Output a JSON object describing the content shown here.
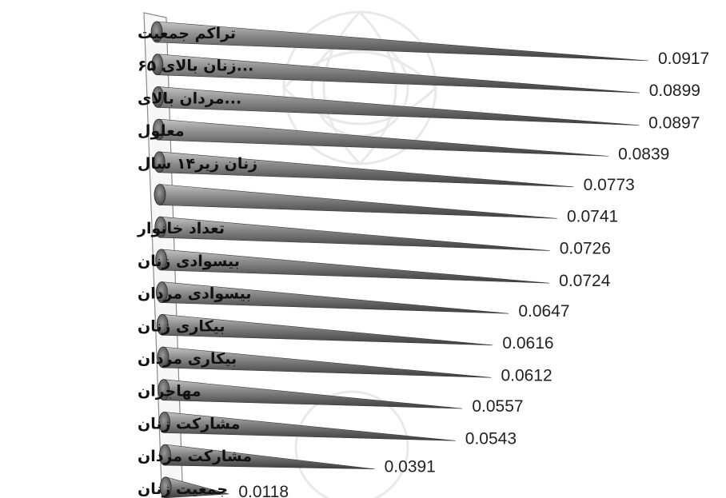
{
  "chart_data": {
    "type": "bar",
    "orientation": "horizontal",
    "style": "3d-cone",
    "bar_color": "#767676",
    "categories": [
      "تراکم جمعیت",
      "...زنان بالای ۶۵",
      "...مردان بالای",
      "معلول",
      "زنان زیر۱۴ سال",
      "",
      "تعداد خانوار",
      "بیسوادی زنان",
      "بیسوادی مردان",
      "بیکاری زنان",
      "بیکاری مردان",
      "مهاجران",
      "مشارکت زنان",
      "مشارکت مردان",
      "جمعیت زنان"
    ],
    "values": [
      0.0917,
      0.0899,
      0.0897,
      0.0839,
      0.0773,
      0.0741,
      0.0726,
      0.0724,
      0.0647,
      0.0616,
      0.0612,
      0.0557,
      0.0543,
      0.0391,
      0.0118
    ],
    "data_labels": [
      "0.0917",
      "0.0899",
      "0.0897",
      "0.0839",
      "0.0773",
      "0.0741",
      "0.0726",
      "0.0724",
      "0.0647",
      "0.0616",
      "0.0612",
      "0.0557",
      "0.0543",
      "0.0391",
      "0.0118"
    ],
    "xlim": [
      0,
      0.0917
    ],
    "grid": false,
    "legend": "none"
  }
}
